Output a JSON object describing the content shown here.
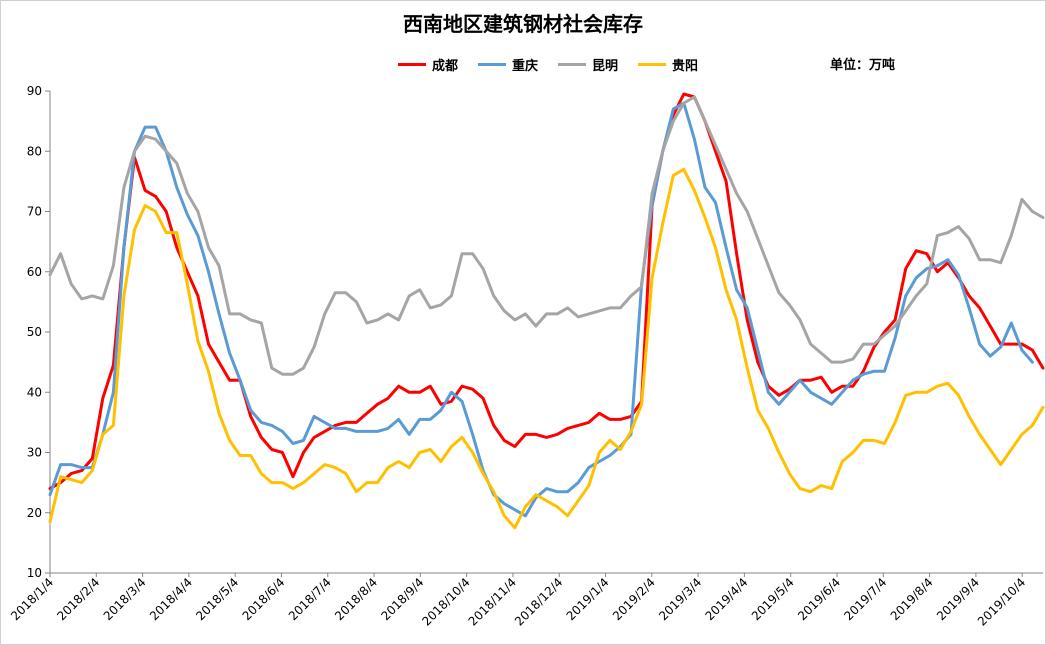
{
  "chart_data": {
    "type": "line",
    "title": "西南地区建筑钢材社会库存",
    "unit": "单位：万吨",
    "ylim": [
      10,
      90
    ],
    "yticks": [
      10,
      20,
      30,
      40,
      50,
      60,
      70,
      80,
      90
    ],
    "grid": false,
    "legend_position": "top-center",
    "xtick_labels": [
      "2018/1/4",
      "2018/2/4",
      "2018/3/4",
      "2018/4/4",
      "2018/5/4",
      "2018/6/4",
      "2018/7/4",
      "2018/8/4",
      "2018/9/4",
      "2018/10/4",
      "2018/11/4",
      "2018/12/4",
      "2019/1/4",
      "2019/2/4",
      "2019/3/4",
      "2019/4/4",
      "2019/5/4",
      "2019/6/4",
      "2019/7/4",
      "2019/8/4",
      "2019/9/4",
      "2019/10/4"
    ],
    "series": [
      {
        "name": "成都",
        "color": "#ff0000",
        "values": [
          24,
          25,
          26.5,
          27,
          29,
          39,
          44.5,
          64,
          79,
          73.5,
          72.5,
          70,
          64,
          60,
          56,
          48,
          45,
          42,
          42,
          36,
          32.5,
          30.5,
          30,
          26,
          30,
          32.5,
          33.5,
          34.5,
          35,
          35,
          36.5,
          38,
          39,
          41,
          40,
          40,
          41,
          38,
          38.5,
          41,
          40.5,
          39,
          34.5,
          32,
          31,
          33,
          33,
          32.5,
          33,
          34,
          34.5,
          35,
          36.5,
          35.5,
          35.5,
          36,
          38.5,
          71,
          80,
          86,
          89.5,
          89,
          85,
          80,
          75,
          63,
          52,
          45,
          41,
          39.5,
          40.5,
          42,
          42,
          42.5,
          40,
          41,
          41,
          43.5,
          47.5,
          50,
          52,
          60.5,
          63.5,
          63,
          60,
          61.5,
          59,
          56,
          54,
          51,
          48,
          48,
          48,
          47,
          44
        ]
      },
      {
        "name": "重庆",
        "color": "#5b9bd5",
        "values": [
          23,
          28,
          28,
          27.5,
          27.5,
          33,
          40,
          64,
          80,
          84,
          84,
          80,
          74,
          69.5,
          66,
          60,
          53,
          46.5,
          42,
          37,
          35,
          34.5,
          33.5,
          31.5,
          32,
          36,
          35,
          34,
          34,
          33.5,
          33.5,
          33.5,
          34,
          35.5,
          33,
          35.5,
          35.5,
          37,
          40,
          38.5,
          33,
          27,
          23,
          21.5,
          20.5,
          19.5,
          22.5,
          24,
          23.5,
          23.5,
          25,
          27.5,
          28.5,
          29.5,
          31,
          33,
          58,
          71,
          80,
          87,
          88,
          82,
          74,
          71.5,
          64,
          57,
          54,
          47,
          40,
          38,
          40,
          42,
          40,
          39,
          38,
          40,
          42,
          43,
          43.5,
          43.5,
          49,
          56,
          59,
          60.5,
          61,
          62,
          59.5,
          54,
          48,
          46,
          47.5,
          51.5,
          47,
          45
        ]
      },
      {
        "name": "昆明",
        "color": "#a5a5a5",
        "values": [
          59.5,
          63,
          58,
          55.5,
          56,
          55.5,
          61,
          74,
          80,
          82.5,
          82,
          80,
          78,
          73,
          70,
          64,
          61,
          53,
          53,
          52,
          51.5,
          44,
          43,
          43,
          44,
          47.5,
          53,
          56.5,
          56.5,
          55,
          51.5,
          52,
          53,
          52,
          56,
          57,
          54,
          54.5,
          56,
          63,
          63,
          60.5,
          56,
          53.5,
          52,
          53,
          51,
          53,
          53,
          54,
          52.5,
          53,
          53.5,
          54,
          54,
          56,
          57.5,
          73,
          80,
          85,
          88,
          89,
          85,
          81,
          77,
          73,
          70,
          65.5,
          61,
          56.5,
          54.5,
          52,
          48,
          46.5,
          45,
          45,
          45.5,
          48,
          48,
          49.5,
          51,
          53.5,
          56,
          58,
          66,
          66.5,
          67.5,
          65.5,
          62,
          62,
          61.5,
          66,
          72,
          70,
          69
        ]
      },
      {
        "name": "贵阳",
        "color": "#ffc000",
        "values": [
          18.5,
          26,
          25.5,
          25,
          27,
          33,
          34.5,
          56,
          67,
          71,
          70,
          66.5,
          66.5,
          58,
          48.5,
          43.5,
          36.5,
          32,
          29.5,
          29.5,
          26.5,
          25,
          25,
          24,
          25,
          26.5,
          28,
          27.5,
          26.5,
          23.5,
          25,
          25,
          27.5,
          28.5,
          27.5,
          30,
          30.5,
          28.5,
          31,
          32.5,
          30,
          26.5,
          23.5,
          19.5,
          17.5,
          21,
          23,
          22,
          21,
          19.5,
          22,
          24.5,
          30,
          32,
          30.5,
          33.5,
          38,
          59,
          68,
          76,
          77,
          73.5,
          69,
          64,
          57,
          52,
          44,
          37,
          34,
          30,
          26.5,
          24,
          23.5,
          24.5,
          24,
          28.5,
          30,
          32,
          32,
          31.5,
          35,
          39.5,
          40,
          40,
          41,
          41.5,
          39.5,
          36,
          33,
          30.5,
          28,
          30.5,
          33,
          34.5,
          37.5
        ]
      }
    ]
  }
}
